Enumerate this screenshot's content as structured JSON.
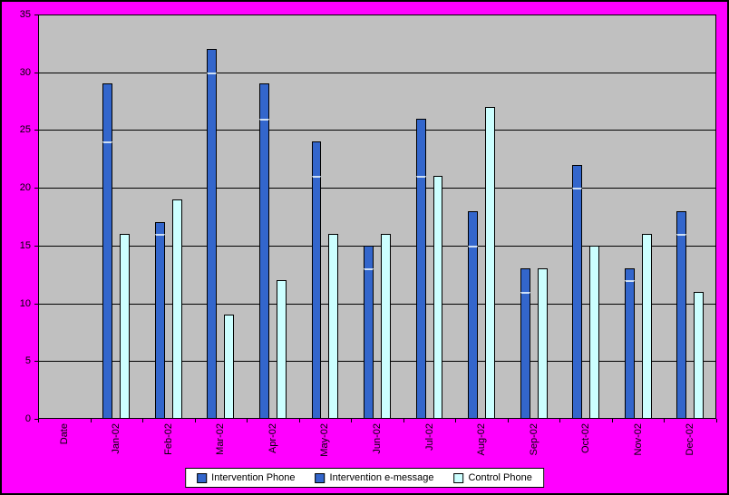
{
  "chart_data": {
    "type": "bar",
    "title": "",
    "xlabel": "",
    "ylabel": "",
    "categories": [
      "Date",
      "Jan-02",
      "Feb-02",
      "Mar-02",
      "Apr-02",
      "May-02",
      "Jun-02",
      "Jul-02",
      "Aug-02",
      "Sep-02",
      "Oct-02",
      "Nov-02",
      "Dec-02"
    ],
    "series": [
      {
        "name": "Intervention Phone",
        "color": "#3366CC",
        "values": [
          null,
          29,
          17,
          32,
          29,
          24,
          15,
          26,
          18,
          13,
          22,
          13,
          18
        ]
      },
      {
        "name": "Intervention e-message",
        "color": "#3366CC",
        "values": [
          null,
          24,
          16,
          30,
          26,
          21,
          13,
          21,
          15,
          11,
          20,
          12,
          16
        ]
      },
      {
        "name": "Control Phone",
        "color": "#CCFFFF",
        "values": [
          null,
          16,
          19,
          9,
          12,
          16,
          16,
          21,
          27,
          13,
          15,
          16,
          11
        ]
      }
    ],
    "ylim": [
      0,
      35
    ],
    "yticks": [
      0,
      5,
      10,
      15,
      20,
      25,
      30,
      35
    ],
    "grid": true,
    "legend_position": "bottom",
    "colors": {
      "page_bg": "#FF00FF",
      "plot_bg": "#C0C0C0",
      "gridline": "#000000",
      "bar_blue": "#3366CC",
      "bar_light": "#CCFFFF",
      "legend_bg": "#FFFFFF",
      "text": "#000000"
    }
  }
}
